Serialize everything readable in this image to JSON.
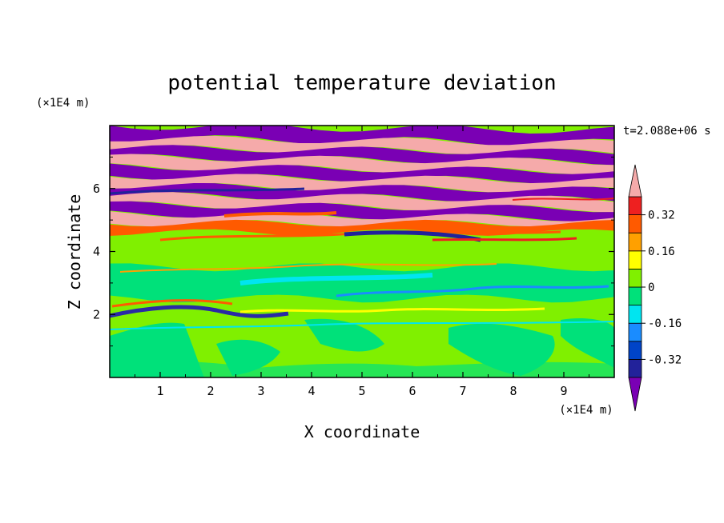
{
  "chart_data": {
    "type": "heatmap",
    "title": "potential temperature deviation",
    "xlabel": "X coordinate",
    "ylabel": "Z coordinate",
    "x_unit": "(×1E4 m)",
    "y_unit": "(×1E4 m)",
    "time_label": "t=2.088e+06 s",
    "xlim": [
      0,
      10
    ],
    "ylim": [
      0,
      8
    ],
    "x_ticks": [
      1,
      2,
      3,
      4,
      5,
      6,
      7,
      8,
      9
    ],
    "y_ticks": [
      2,
      4,
      6
    ],
    "colorbar": {
      "levels": [
        -0.4,
        -0.32,
        -0.24,
        -0.16,
        -0.08,
        0,
        0.08,
        0.16,
        0.24,
        0.32,
        0.4
      ],
      "labels": [
        "0.32",
        "0.16",
        "0",
        "-0.16",
        "-0.32"
      ],
      "label_values": [
        0.32,
        0.16,
        0,
        -0.16,
        -0.32
      ],
      "colors": [
        "#7a00b4",
        "#22229a",
        "#0044c8",
        "#1a8cff",
        "#00e5f0",
        "#00e17a",
        "#80f000",
        "#ffff00",
        "#ffa000",
        "#ff5a00",
        "#ee2020",
        "#f5aaaa"
      ],
      "extend": "both"
    },
    "bands": [
      {
        "z": [
          7.6,
          8.0
        ],
        "value": -0.45
      },
      {
        "z": [
          7.3,
          7.6
        ],
        "value": 0.45
      },
      {
        "z": [
          7.0,
          7.3
        ],
        "value": -0.45
      },
      {
        "z": [
          6.7,
          7.0
        ],
        "value": 0.45
      },
      {
        "z": [
          6.4,
          6.7
        ],
        "value": -0.45
      },
      {
        "z": [
          6.1,
          6.4
        ],
        "value": 0.45
      },
      {
        "z": [
          5.8,
          6.1
        ],
        "value": -0.45
      },
      {
        "z": [
          5.5,
          5.8
        ],
        "value": 0.45
      },
      {
        "z": [
          5.2,
          5.5
        ],
        "value": -0.45
      },
      {
        "z": [
          4.9,
          5.2
        ],
        "value": 0.45
      },
      {
        "z": [
          4.6,
          4.9
        ],
        "value": 0.3
      },
      {
        "z": [
          4.3,
          4.6
        ],
        "value": 0.05
      },
      {
        "z": [
          3.5,
          4.3
        ],
        "value": 0.05
      },
      {
        "z": [
          2.5,
          3.5
        ],
        "value": -0.05
      },
      {
        "z": [
          2.0,
          2.5
        ],
        "value": 0.05
      },
      {
        "z": [
          1.5,
          2.0
        ],
        "value": 0.05
      },
      {
        "z": [
          0.0,
          1.5
        ],
        "value": 0.05
      }
    ]
  }
}
